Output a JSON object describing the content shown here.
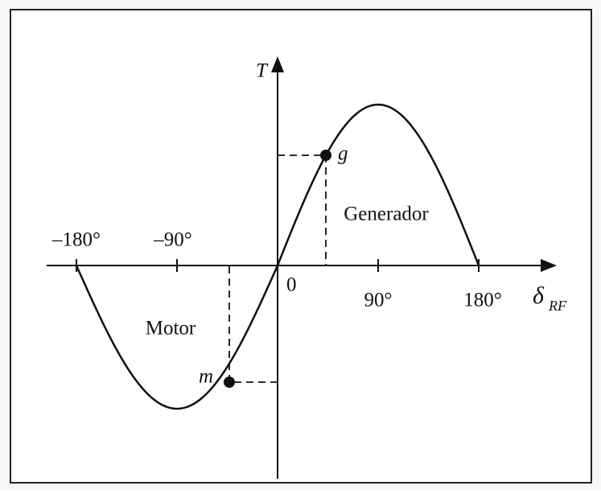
{
  "axes": {
    "y_label": "T",
    "x_label": "δ",
    "x_label_subscript": "RF",
    "origin": "0",
    "x_ticks": [
      "–180°",
      "–90°",
      "90°",
      "180°"
    ]
  },
  "points": {
    "generator_point": "g",
    "motor_point": "m"
  },
  "regions": {
    "generator": "Generador",
    "motor": "Motor"
  }
}
